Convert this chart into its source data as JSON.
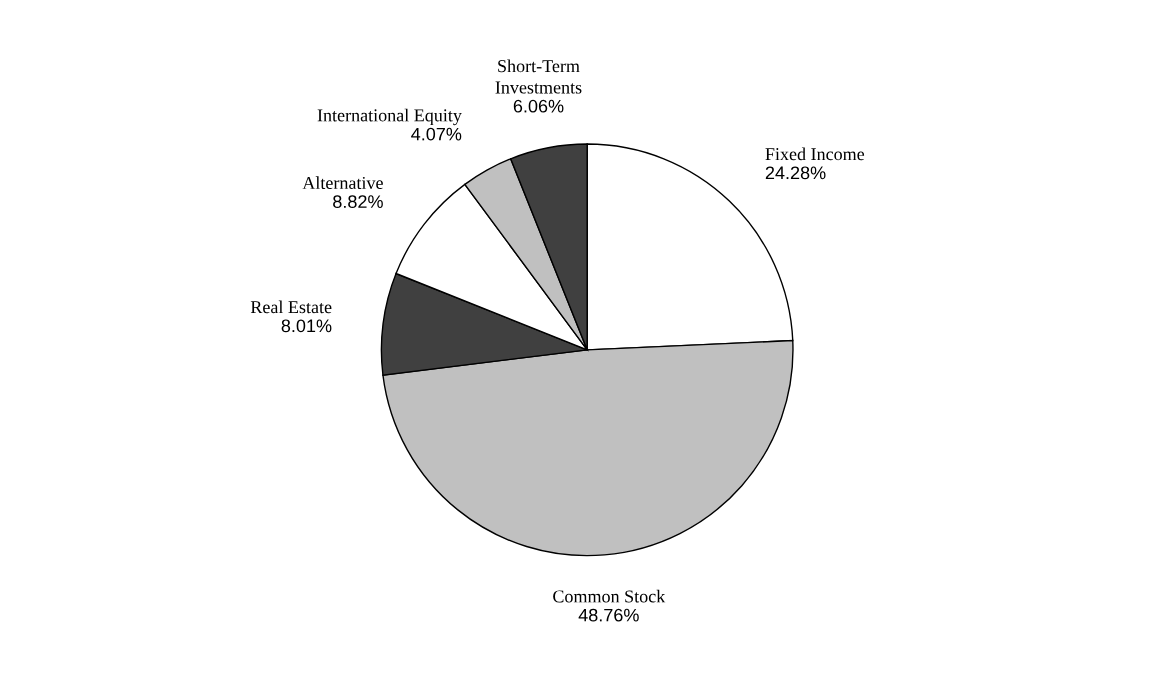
{
  "chart_data": {
    "type": "pie",
    "categories": [
      "Fixed Income",
      "Common Stock",
      "Real Estate",
      "Alternative",
      "International Equity",
      "Short-Term\nInvestments"
    ],
    "values": [
      24.28,
      48.76,
      8.01,
      8.82,
      4.07,
      6.06
    ],
    "value_labels": [
      "24.28%",
      "48.76%",
      "8.01%",
      "8.82%",
      "4.07%",
      "6.06%"
    ],
    "colors": [
      "#ffffff",
      "#c0c0c0",
      "#404040",
      "#ffffff",
      "#c0c0c0",
      "#404040"
    ],
    "legend": false
  }
}
